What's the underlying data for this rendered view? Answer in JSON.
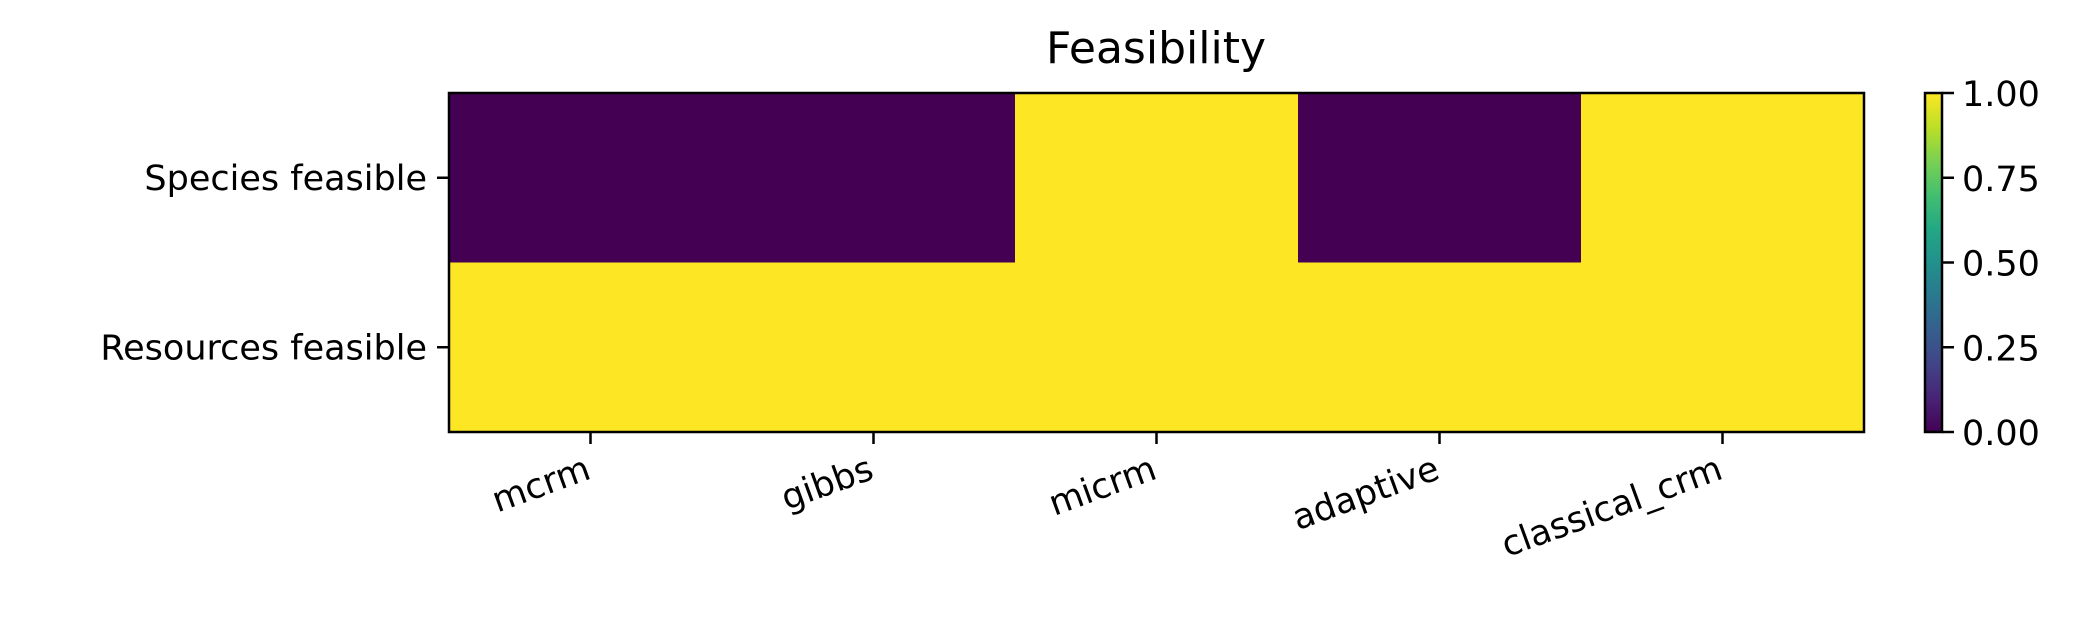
{
  "chart_data": {
    "type": "heatmap",
    "title": "Feasibility",
    "xlabel": "",
    "ylabel": "",
    "x_categories": [
      "mcrm",
      "gibbs",
      "micrm",
      "adaptive",
      "classical_crm"
    ],
    "y_categories": [
      "Species feasible",
      "Resources feasible"
    ],
    "values": [
      [
        0,
        0,
        1,
        0,
        1
      ],
      [
        1,
        1,
        1,
        1,
        1
      ]
    ],
    "colormap": "viridis",
    "vmin": 0,
    "vmax": 1,
    "colorbar": {
      "ticks": [
        "0.00",
        "0.25",
        "0.50",
        "0.75",
        "1.00"
      ]
    },
    "colors": {
      "low": "#440154",
      "high": "#fde725"
    }
  }
}
